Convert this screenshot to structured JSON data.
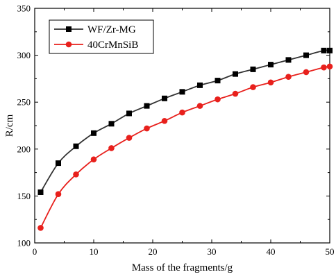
{
  "chart_data": {
    "type": "line",
    "title": "",
    "xlabel": "Mass of the fragments/g",
    "ylabel": "R/cm",
    "xlim": [
      0,
      50
    ],
    "ylim": [
      100,
      350
    ],
    "x_ticks": [
      0,
      10,
      20,
      30,
      40,
      50
    ],
    "y_ticks": [
      100,
      150,
      200,
      250,
      300,
      350
    ],
    "grid": false,
    "legend_position": "top-left",
    "series": [
      {
        "name": "WF/Zr-MG",
        "color": "#333333",
        "marker": "square",
        "x": [
          1,
          4,
          7,
          10,
          13,
          16,
          19,
          22,
          25,
          28,
          31,
          34,
          37,
          40,
          43,
          46,
          49,
          50
        ],
        "y": [
          154,
          185,
          203,
          217,
          227,
          238,
          246,
          254,
          261,
          268,
          273,
          280,
          285,
          290,
          295,
          300,
          305,
          305
        ]
      },
      {
        "name": "40CrMnSiB",
        "color": "#e8201c",
        "marker": "circle",
        "x": [
          1,
          4,
          7,
          10,
          13,
          16,
          19,
          22,
          25,
          28,
          31,
          34,
          37,
          40,
          43,
          46,
          49,
          50
        ],
        "y": [
          116,
          152,
          173,
          189,
          201,
          212,
          222,
          230,
          239,
          246,
          253,
          259,
          266,
          271,
          277,
          282,
          287,
          288
        ]
      }
    ]
  }
}
